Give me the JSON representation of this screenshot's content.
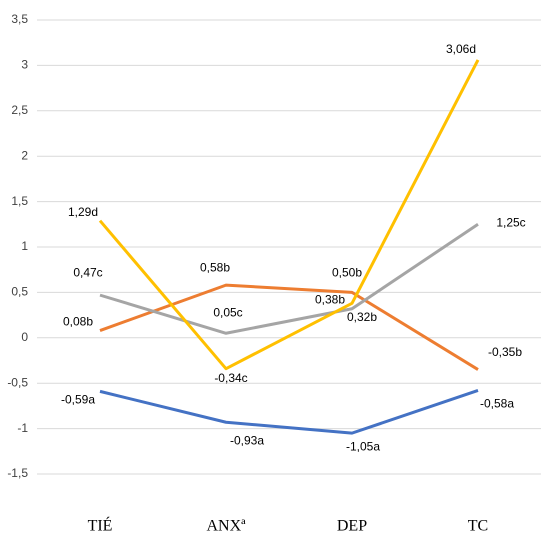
{
  "chart_data": {
    "type": "line",
    "categories": [
      "TIÉ",
      "ANXª",
      "DEP",
      "TC"
    ],
    "series": [
      {
        "color": "#4472c4",
        "values": [
          -0.59,
          -0.93,
          -1.05,
          -0.58
        ],
        "value_labels": [
          "-0,59a",
          "-0,93a",
          "-1,05a",
          "-0,58a"
        ]
      },
      {
        "color": "#ed7d31",
        "values": [
          0.08,
          0.58,
          0.5,
          -0.35
        ],
        "value_labels": [
          "0,08b",
          "0,58b",
          "0,50b",
          "-0,35b"
        ]
      },
      {
        "color": "#a5a5a5",
        "values": [
          0.47,
          0.05,
          0.32,
          1.25
        ],
        "value_labels": [
          "0,47c",
          "0,05c",
          "0,32b",
          "1,25c"
        ]
      },
      {
        "color": "#ffc000",
        "values": [
          1.29,
          -0.34,
          0.38,
          3.06
        ],
        "value_labels": [
          "1,29d",
          "-0,34c",
          "0,38b",
          "3,06d"
        ]
      }
    ],
    "ylim": [
      -1.5,
      3.5
    ],
    "yticks": [
      {
        "value": -1.5,
        "label": "-1,5"
      },
      -1,
      {
        "value": -0.5,
        "label": "-0,5"
      },
      0,
      {
        "value": 0.5,
        "label": "0,5"
      },
      1,
      {
        "value": 1.5,
        "label": "1,5"
      },
      2,
      {
        "value": 2.5,
        "label": "2,5"
      },
      3,
      {
        "value": 3.5,
        "label": "3,5"
      }
    ],
    "grid": true
  }
}
